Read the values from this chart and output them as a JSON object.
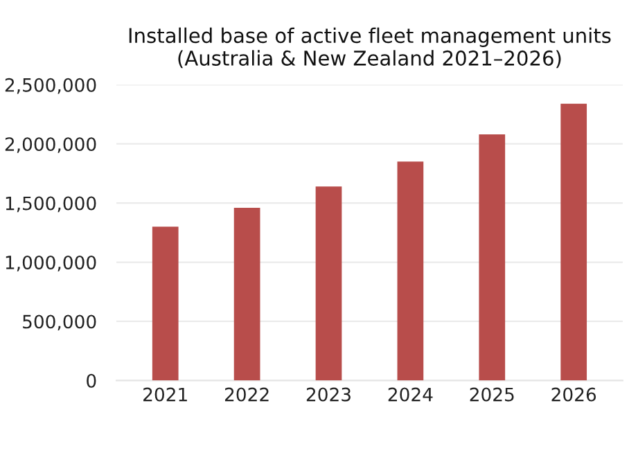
{
  "chart_data": {
    "type": "bar",
    "title": "Installed base of active fleet management units\n(Australia & New Zealand 2021–2026)",
    "categories": [
      "2021",
      "2022",
      "2023",
      "2024",
      "2025",
      "2026"
    ],
    "values": [
      1300000,
      1460000,
      1640000,
      1850000,
      2080000,
      2340000
    ],
    "color": "#b84d4b",
    "ylim": [
      0,
      2500000
    ],
    "yticks": [
      {
        "value": 0,
        "label": "0"
      },
      {
        "value": 500000,
        "label": "500,000"
      },
      {
        "value": 1000000,
        "label": "1,000,000"
      },
      {
        "value": 1500000,
        "label": "1,500,000"
      },
      {
        "value": 2000000,
        "label": "2,000,000"
      },
      {
        "value": 2500000,
        "label": "2,500,000"
      }
    ],
    "grid": "y"
  }
}
